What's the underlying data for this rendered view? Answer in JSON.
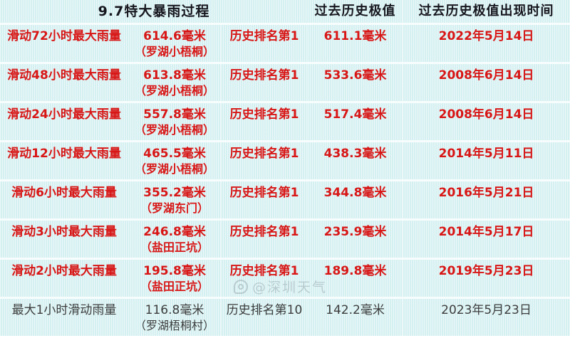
{
  "chart_data": {
    "type": "table",
    "title": "9.7特大暴雨过程",
    "column_headers": [
      "9.7特大暴雨过程",
      "过去历史极值",
      "过去历史极值出现时间"
    ],
    "rows": [
      {
        "label": "滑动72小时最大雨量",
        "value": "614.6毫米",
        "station": "（罗湖小梧桐）",
        "rank": "历史排名第1",
        "extreme": "611.1毫米",
        "date": "2022年5月14日"
      },
      {
        "label": "滑动48小时最大雨量",
        "value": "613.8毫米",
        "station": "（罗湖小梧桐）",
        "rank": "历史排名第1",
        "extreme": "533.6毫米",
        "date": "2008年6月14日"
      },
      {
        "label": "滑动24小时最大雨量",
        "value": "557.8毫米",
        "station": "（罗湖小梧桐）",
        "rank": "历史排名第1",
        "extreme": "517.4毫米",
        "date": "2008年6月14日"
      },
      {
        "label": "滑动12小时最大雨量",
        "value": "465.5毫米",
        "station": "（罗湖小梧桐）",
        "rank": "历史排名第1",
        "extreme": "438.3毫米",
        "date": "2014年5月11日"
      },
      {
        "label": "滑动6小时最大雨量",
        "value": "355.2毫米",
        "station": "（罗湖东门）",
        "rank": "历史排名第1",
        "extreme": "344.8毫米",
        "date": "2016年5月21日"
      },
      {
        "label": "滑动3小时最大雨量",
        "value": "246.8毫米",
        "station": "（盐田正坑）",
        "rank": "历史排名第1",
        "extreme": "235.9毫米",
        "date": "2014年5月17日"
      },
      {
        "label": "滑动2小时最大雨量",
        "value": "195.8毫米",
        "station": "（盐田正坑）",
        "rank": "历史排名第1",
        "extreme": "189.8毫米",
        "date": "2019年5月23日"
      },
      {
        "label": "最大1小时滑动雨量",
        "value": "116.8毫米",
        "station": "（罗湖梧桐村）",
        "rank": "历史排名第10",
        "extreme": "142.2毫米",
        "date": "2023年5月23日"
      }
    ]
  },
  "watermark": {
    "text": "@深圳天气"
  },
  "colors": {
    "highlight_red": "#d81616",
    "header_text": "#16161e",
    "muted_text": "#3c3c3c",
    "row_band": "#d5f0f1",
    "gap_white": "#ffffff"
  }
}
